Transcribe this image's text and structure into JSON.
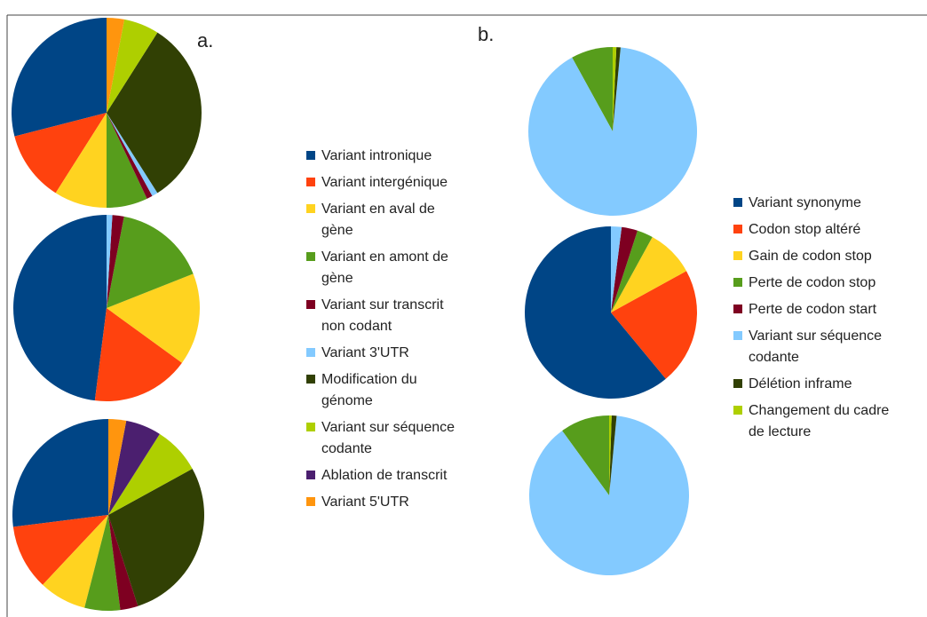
{
  "chart_data": [
    {
      "type": "pie",
      "title": "a.",
      "categories": [
        [
          "Variant intronique"
        ],
        [
          "Variant intergénique"
        ],
        [
          "Variant en aval de",
          "gène"
        ],
        [
          "Variant en amont de",
          "gène"
        ],
        [
          "Variant sur transcrit",
          "non codant"
        ],
        [
          "Variant 3'UTR"
        ],
        [
          "Modification du",
          "génome"
        ],
        [
          "Variant sur séquence",
          "codante"
        ],
        [
          "Ablation de transcrit"
        ],
        [
          "Variant 5'UTR"
        ]
      ],
      "colors": [
        "#004586",
        "#ff420e",
        "#ffd320",
        "#579d1c",
        "#7e0021",
        "#83caff",
        "#314004",
        "#aecf00",
        "#4b1f6f",
        "#ff950e"
      ],
      "series": [
        {
          "values": [
            29,
            12,
            9,
            7,
            1,
            1,
            32,
            6,
            0,
            3
          ]
        },
        {
          "values": [
            48,
            17,
            16,
            16,
            2,
            1,
            0,
            0,
            0,
            0
          ]
        },
        {
          "values": [
            27,
            11,
            8,
            6,
            3,
            0,
            28,
            8,
            6,
            3
          ]
        }
      ]
    },
    {
      "type": "pie",
      "title": "b.",
      "categories": [
        [
          "Variant synonyme"
        ],
        [
          "Codon stop altéré"
        ],
        [
          "Gain de codon stop"
        ],
        [
          "Perte de codon stop"
        ],
        [
          "Perte de codon start"
        ],
        [
          "Variant sur séquence",
          "codante"
        ],
        [
          "Délétion inframe"
        ],
        [
          "Changement du cadre",
          "de lecture"
        ]
      ],
      "colors": [
        "#004586",
        "#ff420e",
        "#ffd320",
        "#579d1c",
        "#7e0021",
        "#83caff",
        "#314004",
        "#aecf00"
      ],
      "series": [
        {
          "values": [
            0,
            0,
            0,
            8,
            0,
            90.5,
            0.8,
            0.7
          ]
        },
        {
          "values": [
            61,
            22,
            9,
            3,
            3,
            2,
            0,
            0
          ]
        },
        {
          "values": [
            0,
            0,
            0,
            10,
            0,
            88.5,
            1,
            0.5
          ]
        }
      ]
    }
  ]
}
